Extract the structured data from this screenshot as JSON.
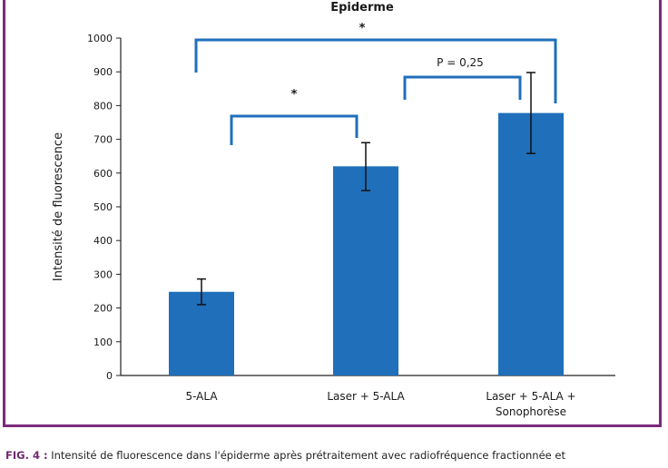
{
  "chart_data": {
    "type": "bar",
    "title": "Epiderme",
    "ylabel": "Intensité de fluorescence",
    "xlabel": "",
    "ylim": [
      0,
      1000
    ],
    "yticks": [
      0,
      100,
      200,
      300,
      400,
      500,
      600,
      700,
      800,
      900,
      1000
    ],
    "ytick_labels": [
      "0",
      "100",
      "200",
      "300",
      "400",
      "500",
      "600",
      "700",
      "800",
      "900",
      "1000"
    ],
    "categories": [
      [
        "5-ALA"
      ],
      [
        "Laser + 5-ALA"
      ],
      [
        "Laser + 5-ALA +",
        "Sonophorèse"
      ]
    ],
    "values": [
      248,
      620,
      778
    ],
    "error_low": [
      210,
      548,
      658
    ],
    "error_high": [
      286,
      690,
      898
    ],
    "bar_color": "#1f6fba",
    "bracket_color": "#1f6fba",
    "brackets": [
      {
        "from": 0,
        "to": 1,
        "label": "*"
      },
      {
        "from": 1,
        "to": 2,
        "label": "P = 0,25"
      },
      {
        "from": 0,
        "to": 2,
        "label": "*"
      }
    ]
  },
  "caption": {
    "label": "FIG. 4 :",
    "text": "Intensité de fluorescence dans l'épiderme après prétraitement avec radiofréquence fractionnée et"
  }
}
